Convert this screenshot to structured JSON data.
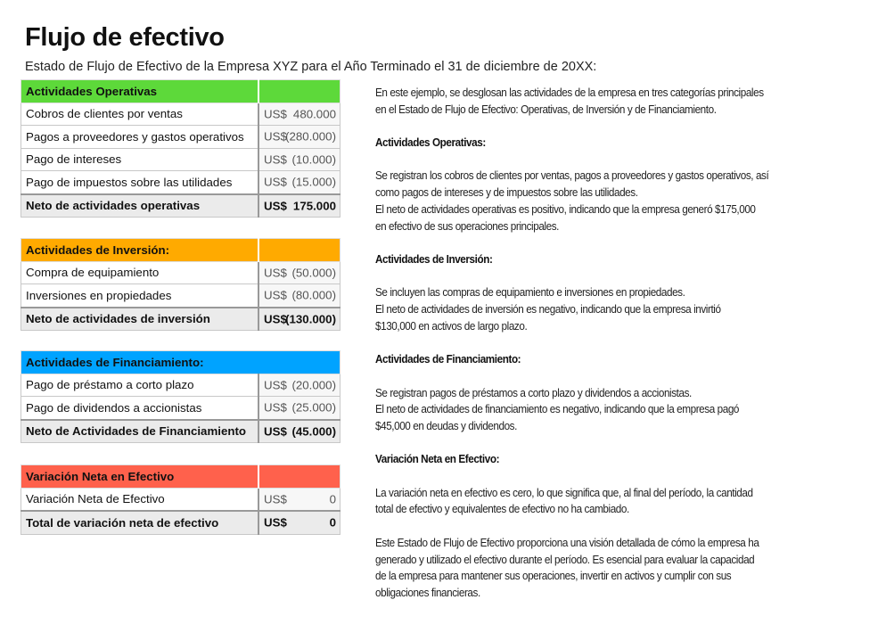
{
  "title": "Flujo de efectivo",
  "subtitle": "Estado de Flujo de Efectivo de la Empresa XYZ para el Año Terminado el 31 de diciembre de 20XX:",
  "colors": {
    "operativas": "#5dd93a",
    "inversion": "#ffaa00",
    "financiamiento": "#00a3ff",
    "variacion": "#ff614c"
  },
  "sections": [
    {
      "id": "operativas",
      "header": "Actividades Operativas",
      "split_header": true,
      "rows": [
        {
          "label": "Cobros de clientes por ventas",
          "currency": "US$",
          "value": "480.000"
        },
        {
          "label": "Pagos a proveedores y gastos operativos",
          "currency": "US$",
          "value": "(280.000)"
        },
        {
          "label": "Pago de intereses",
          "currency": "US$",
          "value": "(10.000)"
        },
        {
          "label": "Pago de impuestos sobre las utilidades",
          "currency": "US$",
          "value": "(15.000)"
        }
      ],
      "total": {
        "label": "Neto de actividades operativas",
        "currency": "US$",
        "value": "175.000"
      }
    },
    {
      "id": "inversion",
      "header": "Actividades de Inversión:",
      "split_header": true,
      "rows": [
        {
          "label": "Compra de equipamiento",
          "currency": "US$",
          "value": "(50.000)"
        },
        {
          "label": "Inversiones en propiedades",
          "currency": "US$",
          "value": "(80.000)"
        }
      ],
      "total": {
        "label": "Neto de actividades de inversión",
        "currency": "US$",
        "value": "(130.000)"
      }
    },
    {
      "id": "financiamiento",
      "header": "Actividades de Financiamiento:",
      "split_header": false,
      "rows": [
        {
          "label": "Pago de préstamo a corto plazo",
          "currency": "US$",
          "value": "(20.000)"
        },
        {
          "label": "Pago de dividendos a accionistas",
          "currency": "US$",
          "value": "(25.000)"
        }
      ],
      "total": {
        "label": "Neto de Actividades de Financiamiento",
        "currency": "US$",
        "value": "(45.000)"
      }
    },
    {
      "id": "variacion",
      "header": "Variación Neta en Efectivo",
      "split_header": true,
      "rows": [
        {
          "label": "Variación Neta de Efectivo",
          "currency": "US$",
          "value": "0"
        }
      ],
      "total": {
        "label": "Total de variación neta de efectivo",
        "currency": "US$",
        "value": "0"
      }
    }
  ],
  "explanation": [
    {
      "type": "p",
      "lines": [
        "En este ejemplo, se desglosan las actividades de la empresa en tres categorías principales",
        "en el Estado de Flujo de Efectivo: Operativas, de Inversión y de Financiamiento."
      ]
    },
    {
      "type": "h",
      "lines": [
        "Actividades Operativas:"
      ]
    },
    {
      "type": "p",
      "lines": [
        "Se registran los cobros de clientes por ventas, pagos a proveedores y gastos operativos, así",
        "como pagos de intereses y de impuestos sobre las utilidades.",
        "El neto de actividades operativas es positivo, indicando que la empresa generó $175,000",
        "en efectivo de sus operaciones principales."
      ]
    },
    {
      "type": "h",
      "lines": [
        "Actividades de Inversión:"
      ]
    },
    {
      "type": "p",
      "lines": [
        "Se incluyen las compras de equipamiento e inversiones en propiedades.",
        "El neto de actividades de inversión es negativo, indicando que la empresa invirtió",
        "$130,000 en activos de largo plazo."
      ]
    },
    {
      "type": "h",
      "lines": [
        "Actividades de Financiamiento:"
      ]
    },
    {
      "type": "p",
      "lines": [
        "Se registran pagos de préstamos a corto plazo y dividendos a accionistas.",
        "El neto de actividades de financiamiento es negativo, indicando que la empresa pagó",
        "$45,000 en deudas y dividendos."
      ]
    },
    {
      "type": "h",
      "lines": [
        "Variación Neta en Efectivo:"
      ]
    },
    {
      "type": "p",
      "lines": [
        "La variación neta en efectivo es cero, lo que significa que, al final del período, la cantidad",
        "total de efectivo y equivalentes de efectivo no ha cambiado."
      ]
    },
    {
      "type": "p",
      "lines": [
        "Este Estado de Flujo de Efectivo proporciona una visión detallada de cómo la empresa ha",
        "generado y utilizado el efectivo durante el período. Es esencial para evaluar la capacidad",
        "de la empresa para mantener sus operaciones, invertir en activos y cumplir con sus",
        "obligaciones financieras."
      ]
    }
  ]
}
